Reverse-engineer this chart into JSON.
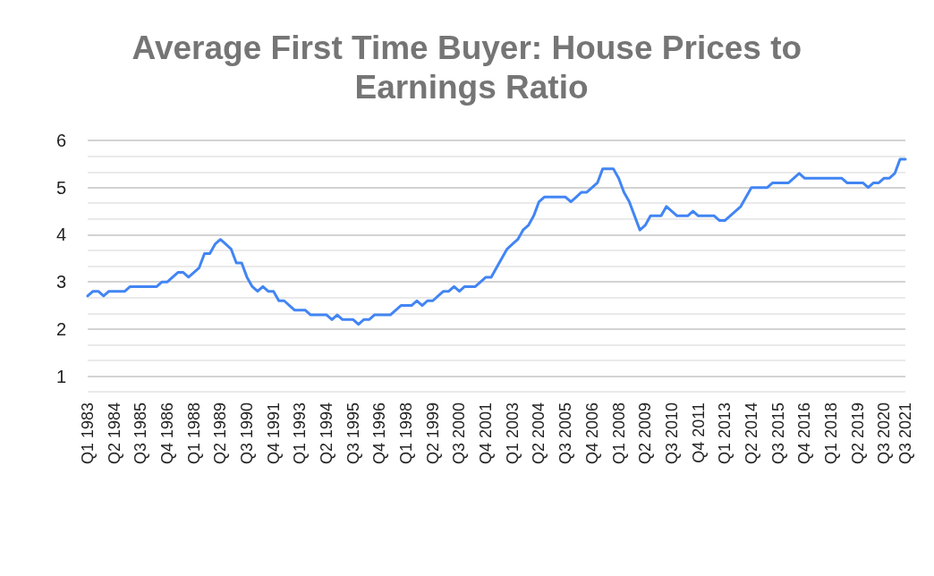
{
  "chart_data": {
    "type": "line",
    "title": "Average First Time Buyer: House Prices to Earnings Ratio",
    "categories": [
      "Q1 1983",
      null,
      null,
      null,
      null,
      "Q2 1984",
      null,
      null,
      null,
      null,
      "Q3 1985",
      null,
      null,
      null,
      null,
      "Q4 1986",
      null,
      null,
      null,
      null,
      "Q1 1988",
      null,
      null,
      null,
      null,
      "Q2 1989",
      null,
      null,
      null,
      null,
      "Q3 1990",
      null,
      null,
      null,
      null,
      "Q4 1991",
      null,
      null,
      null,
      null,
      "Q1 1993",
      null,
      null,
      null,
      null,
      "Q2 1994",
      null,
      null,
      null,
      null,
      "Q3 1995",
      null,
      null,
      null,
      null,
      "Q4 1996",
      null,
      null,
      null,
      null,
      "Q1 1998",
      null,
      null,
      null,
      null,
      "Q2 1999",
      null,
      null,
      null,
      null,
      "Q3 2000",
      null,
      null,
      null,
      null,
      "Q4 2001",
      null,
      null,
      null,
      null,
      "Q1 2003",
      null,
      null,
      null,
      null,
      "Q2 2004",
      null,
      null,
      null,
      null,
      "Q3 2005",
      null,
      null,
      null,
      null,
      "Q4 2006",
      null,
      null,
      null,
      null,
      "Q1 2008",
      null,
      null,
      null,
      null,
      "Q2 2009",
      null,
      null,
      null,
      null,
      "Q3 2010",
      null,
      null,
      null,
      null,
      "Q4 2011",
      null,
      null,
      null,
      null,
      "Q1 2013",
      null,
      null,
      null,
      null,
      "Q2 2014",
      null,
      null,
      null,
      null,
      "Q3 2015",
      null,
      null,
      null,
      null,
      "Q4 2016",
      null,
      null,
      null,
      null,
      "Q1 2018",
      null,
      null,
      null,
      null,
      "Q2 2019",
      null,
      null,
      null,
      null,
      "Q3 2020",
      null,
      null,
      null,
      "Q3 2021"
    ],
    "series": [
      {
        "color": "#4285f4",
        "values": [
          2.7,
          2.8,
          2.8,
          2.7,
          2.8,
          2.8,
          2.8,
          2.8,
          2.9,
          2.9,
          2.9,
          2.9,
          2.9,
          2.9,
          3.0,
          3.0,
          3.1,
          3.2,
          3.2,
          3.1,
          3.2,
          3.3,
          3.6,
          3.6,
          3.8,
          3.9,
          3.8,
          3.7,
          3.4,
          3.4,
          3.1,
          2.9,
          2.8,
          2.9,
          2.8,
          2.8,
          2.6,
          2.6,
          2.5,
          2.4,
          2.4,
          2.4,
          2.3,
          2.3,
          2.3,
          2.3,
          2.2,
          2.3,
          2.2,
          2.2,
          2.2,
          2.1,
          2.2,
          2.2,
          2.3,
          2.3,
          2.3,
          2.3,
          2.4,
          2.5,
          2.5,
          2.5,
          2.6,
          2.5,
          2.6,
          2.6,
          2.7,
          2.8,
          2.8,
          2.9,
          2.8,
          2.9,
          2.9,
          2.9,
          3.0,
          3.1,
          3.1,
          3.3,
          3.5,
          3.7,
          3.8,
          3.9,
          4.1,
          4.2,
          4.4,
          4.7,
          4.8,
          4.8,
          4.8,
          4.8,
          4.8,
          4.7,
          4.8,
          4.9,
          4.9,
          5.0,
          5.1,
          5.4,
          5.4,
          5.4,
          5.2,
          4.9,
          4.7,
          4.4,
          4.1,
          4.2,
          4.4,
          4.4,
          4.4,
          4.6,
          4.5,
          4.4,
          4.4,
          4.4,
          4.5,
          4.4,
          4.4,
          4.4,
          4.4,
          4.3,
          4.3,
          4.4,
          4.5,
          4.6,
          4.8,
          5.0,
          5.0,
          5.0,
          5.0,
          5.1,
          5.1,
          5.1,
          5.1,
          5.2,
          5.3,
          5.2,
          5.2,
          5.2,
          5.2,
          5.2,
          5.2,
          5.2,
          5.2,
          5.1,
          5.1,
          5.1,
          5.1,
          5.0,
          5.1,
          5.1,
          5.2,
          5.2,
          5.3,
          5.6,
          5.6
        ]
      }
    ],
    "ylim": [
      0.67,
      6
    ],
    "yticks": [
      {
        "value": 0.67,
        "label": null
      },
      1,
      {
        "value": 1.33,
        "label": null
      },
      {
        "value": 1.67,
        "label": null
      },
      2,
      {
        "value": 2.33,
        "label": null
      },
      {
        "value": 2.67,
        "label": null
      },
      3,
      {
        "value": 3.33,
        "label": null
      },
      {
        "value": 3.67,
        "label": null
      },
      4,
      {
        "value": 4.33,
        "label": null
      },
      {
        "value": 4.67,
        "label": null
      },
      5,
      {
        "value": 5.33,
        "label": null
      },
      {
        "value": 5.67,
        "label": null
      },
      6
    ],
    "grid": true,
    "marker": "none",
    "line_style": "solid"
  }
}
